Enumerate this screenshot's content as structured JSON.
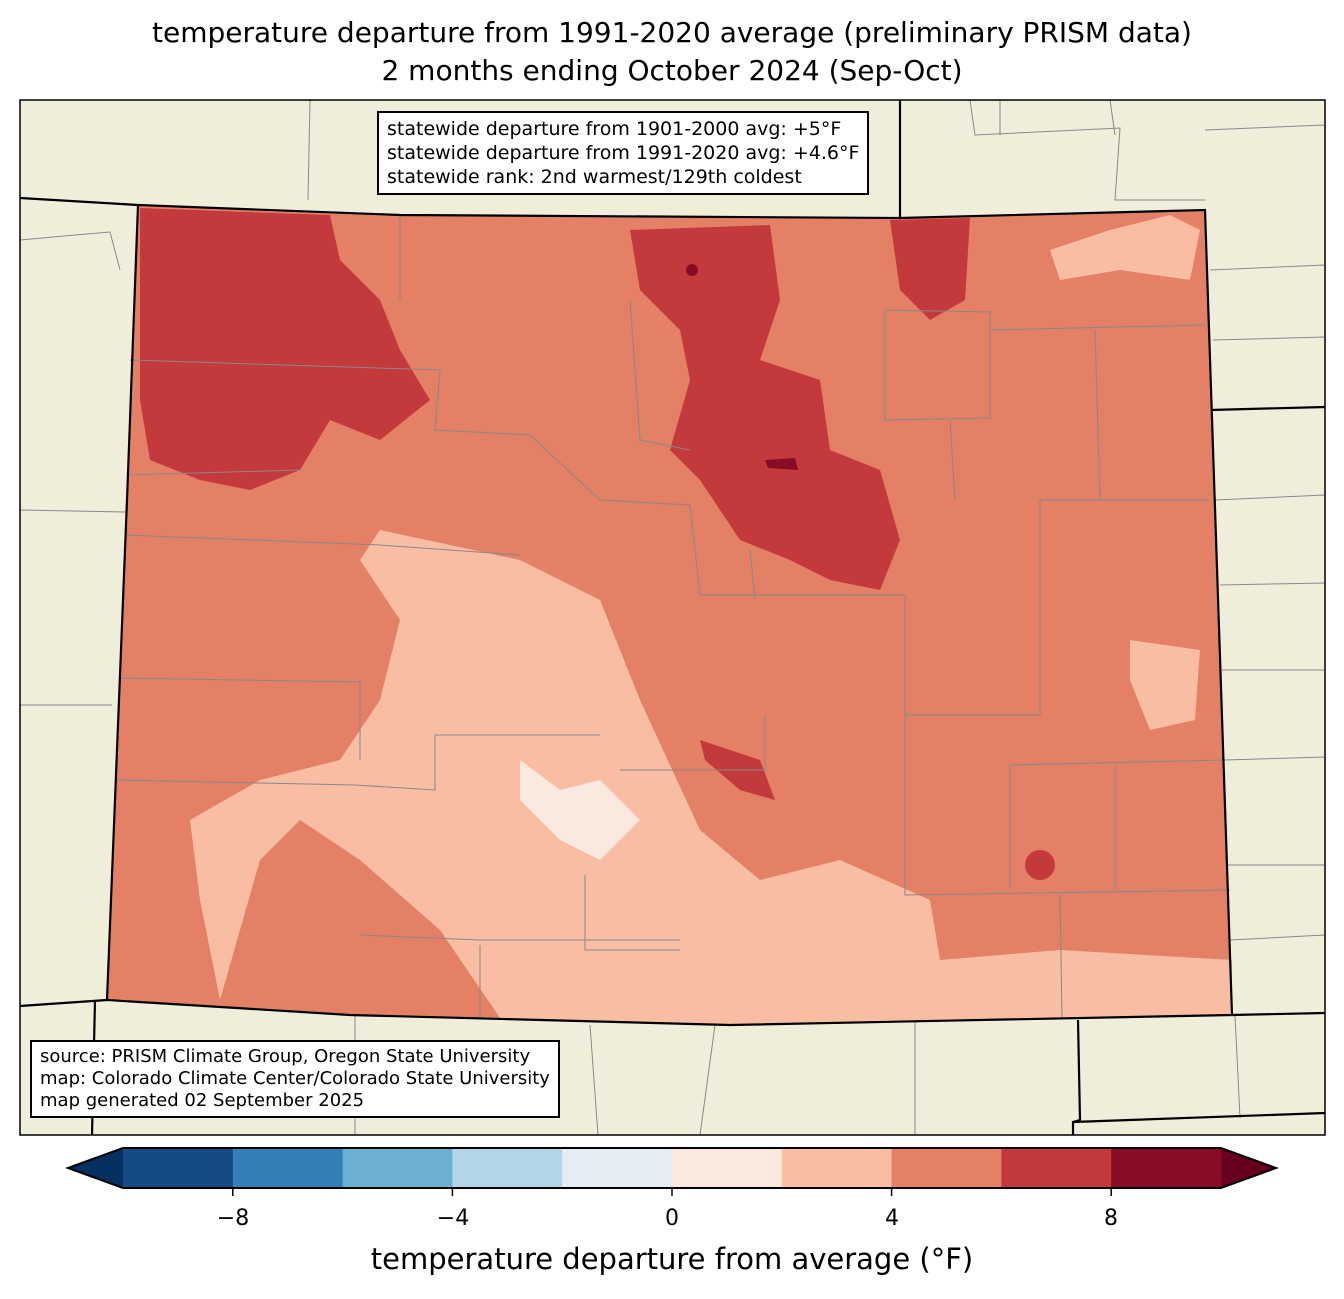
{
  "title": {
    "line1": "temperature departure from 1991-2020 average (preliminary PRISM data)",
    "line2": "2 months ending October 2024 (Sep-Oct)"
  },
  "stats_box": {
    "line1": "statewide departure from 1901-2000 avg: +5°F",
    "line2": "statewide departure from 1991-2020 avg: +4.6°F",
    "line3": "statewide rank: 2nd warmest/129th coldest"
  },
  "source_box": {
    "line1": "source: PRISM Climate Group, Oregon State University",
    "line2": "map: Colorado Climate Center/Colorado State University",
    "line3": "map generated 02 September 2025"
  },
  "colorbar": {
    "label": "temperature departure from average (°F)",
    "levels": [
      -10,
      -8,
      -6,
      -4,
      -2,
      0,
      2,
      4,
      6,
      8,
      10
    ],
    "colors": [
      "#154a85",
      "#327fb8",
      "#6bafd1",
      "#b2d5e7",
      "#e4edf3",
      "#fae9df",
      "#f9bda3",
      "#e48066",
      "#c3393c",
      "#880c26"
    ],
    "extend_low_color": "#053061",
    "extend_high_color": "#67001f",
    "ticks": [
      "−8",
      "−4",
      "0",
      "4",
      "8"
    ]
  },
  "map": {
    "background_color": "#efeedb",
    "dominant_departure_range": "4 to 6"
  }
}
